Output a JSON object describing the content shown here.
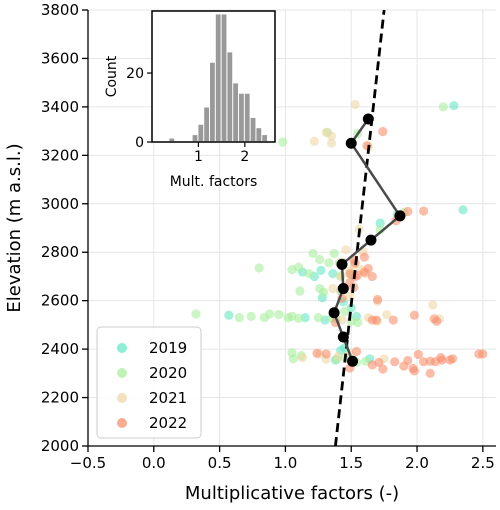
{
  "chart_data": [
    {
      "type": "scatter",
      "xlabel": "Multiplicative factors (-)",
      "ylabel": "Elevation (m a.s.l.)",
      "xlim": [
        -0.5,
        2.6
      ],
      "ylim": [
        2000,
        3800
      ],
      "xticks": [
        "−0.5",
        "0.0",
        "0.5",
        "1.0",
        "1.5",
        "2.0",
        "2.5"
      ],
      "yticks": [
        "2000",
        "2200",
        "2400",
        "2600",
        "2800",
        "3000",
        "3200",
        "3400",
        "3600",
        "3800"
      ],
      "grid": true,
      "legend_position": "lower-left",
      "series": [
        {
          "name": "2019",
          "color": "#66e8c6",
          "points": [
            [
              2.28,
              3405
            ],
            [
              2.35,
              2975
            ],
            [
              1.85,
              2955
            ],
            [
              1.72,
              2920
            ],
            [
              1.27,
              2725
            ],
            [
              1.13,
              2718
            ],
            [
              1.36,
              2712
            ],
            [
              1.22,
              2700
            ],
            [
              1.42,
              2640
            ],
            [
              1.28,
              2612
            ],
            [
              1.44,
              2595
            ],
            [
              1.5,
              2570
            ],
            [
              0.57,
              2540
            ],
            [
              1.54,
              2535
            ],
            [
              1.15,
              2530
            ],
            [
              1.3,
              2520
            ],
            [
              1.45,
              2405
            ],
            [
              1.42,
              2395
            ],
            [
              1.64,
              2360
            ],
            [
              1.38,
              2355
            ]
          ]
        },
        {
          "name": "2020",
          "color": "#a8ef9c",
          "points": [
            [
              2.2,
              3400
            ],
            [
              1.32,
              3295
            ],
            [
              1.55,
              3290
            ],
            [
              0.98,
              3255
            ],
            [
              1.9,
              2965
            ],
            [
              1.72,
              2892
            ],
            [
              1.21,
              2795
            ],
            [
              1.37,
              2795
            ],
            [
              1.26,
              2770
            ],
            [
              1.33,
              2756
            ],
            [
              1.41,
              2755
            ],
            [
              0.8,
              2735
            ],
            [
              1.1,
              2738
            ],
            [
              1.05,
              2728
            ],
            [
              1.18,
              2712
            ],
            [
              1.5,
              2707
            ],
            [
              1.42,
              2702
            ],
            [
              1.26,
              2650
            ],
            [
              1.11,
              2640
            ],
            [
              1.29,
              2635
            ],
            [
              1.45,
              2555
            ],
            [
              0.32,
              2545
            ],
            [
              0.88,
              2545
            ],
            [
              0.95,
              2543
            ],
            [
              0.84,
              2530
            ],
            [
              0.74,
              2535
            ],
            [
              1.02,
              2530
            ],
            [
              1.1,
              2527
            ],
            [
              1.05,
              2535
            ],
            [
              1.25,
              2530
            ],
            [
              1.35,
              2528
            ],
            [
              1.39,
              2525
            ],
            [
              0.65,
              2530
            ],
            [
              1.5,
              2515
            ],
            [
              1.55,
              2510
            ],
            [
              1.05,
              2385
            ],
            [
              1.12,
              2373
            ],
            [
              1.06,
              2360
            ],
            [
              1.45,
              2367
            ],
            [
              1.39,
              2358
            ],
            [
              1.61,
              2350
            ],
            [
              1.54,
              2345
            ]
          ]
        },
        {
          "name": "2021",
          "color": "#eed7a7",
          "points": [
            [
              1.53,
              3410
            ],
            [
              1.31,
              3295
            ],
            [
              1.35,
              3280
            ],
            [
              1.22,
              3258
            ],
            [
              1.35,
              3250
            ],
            [
              1.63,
              3235
            ],
            [
              1.88,
              2945
            ],
            [
              1.56,
              2895
            ],
            [
              1.46,
              2810
            ],
            [
              1.59,
              2803
            ],
            [
              1.43,
              2760
            ],
            [
              1.52,
              2745
            ],
            [
              1.58,
              2728
            ],
            [
              1.49,
              2722
            ],
            [
              1.61,
              2712
            ],
            [
              1.42,
              2700
            ],
            [
              1.36,
              2650
            ],
            [
              1.42,
              2640
            ],
            [
              1.49,
              2620
            ],
            [
              1.7,
              2597
            ],
            [
              2.12,
              2582
            ],
            [
              1.77,
              2542
            ],
            [
              1.63,
              2530
            ],
            [
              2.17,
              2525
            ],
            [
              1.43,
              2520
            ],
            [
              1.7,
              2515
            ],
            [
              1.75,
              2360
            ],
            [
              1.4,
              2370
            ],
            [
              1.13,
              2365
            ],
            [
              1.31,
              2358
            ],
            [
              1.26,
              2380
            ],
            [
              1.49,
              2380
            ]
          ]
        },
        {
          "name": "2022",
          "color": "#f8906e",
          "points": [
            [
              1.74,
              3298
            ],
            [
              1.62,
              3240
            ],
            [
              1.93,
              2968
            ],
            [
              1.88,
              2955
            ],
            [
              2.05,
              2970
            ],
            [
              1.84,
              2930
            ],
            [
              1.6,
              2780
            ],
            [
              1.52,
              2770
            ],
            [
              1.53,
              2755
            ],
            [
              1.63,
              2733
            ],
            [
              1.6,
              2718
            ],
            [
              1.55,
              2706
            ],
            [
              1.49,
              2711
            ],
            [
              1.53,
              2699
            ],
            [
              1.66,
              2700
            ],
            [
              1.49,
              2675
            ],
            [
              1.52,
              2655
            ],
            [
              1.7,
              2605
            ],
            [
              1.43,
              2610
            ],
            [
              1.98,
              2540
            ],
            [
              2.13,
              2525
            ],
            [
              2.15,
              2515
            ],
            [
              1.82,
              2520
            ],
            [
              1.69,
              2520
            ],
            [
              1.38,
              2510
            ],
            [
              1.66,
              2520
            ],
            [
              1.31,
              2380
            ],
            [
              1.24,
              2383
            ],
            [
              1.54,
              2390
            ],
            [
              2.01,
              2378
            ],
            [
              2.18,
              2365
            ],
            [
              2.14,
              2348
            ],
            [
              2.05,
              2348
            ],
            [
              1.93,
              2353
            ],
            [
              1.83,
              2348
            ],
            [
              1.71,
              2345
            ],
            [
              1.9,
              2330
            ],
            [
              2.27,
              2360
            ],
            [
              2.1,
              2350
            ],
            [
              2.47,
              2380
            ],
            [
              2.5,
              2380
            ],
            [
              2.25,
              2355
            ],
            [
              1.74,
              2318
            ],
            [
              1.49,
              2322
            ],
            [
              1.98,
              2310
            ],
            [
              2.1,
              2300
            ],
            [
              1.97,
              2320
            ],
            [
              2.19,
              2355
            ],
            [
              1.66,
              2335
            ]
          ]
        }
      ],
      "mean_profile": {
        "color": "#4a4a4a",
        "x": [
          1.51,
          1.44,
          1.37,
          1.44,
          1.43,
          1.65,
          1.87,
          1.5,
          1.63
        ],
        "y": [
          2350,
          2450,
          2550,
          2650,
          2750,
          2850,
          2950,
          3250,
          3350
        ]
      },
      "regression_line": {
        "style": "dashed",
        "color": "#000000",
        "x": [
          1.38,
          1.75
        ],
        "y": [
          2000,
          3800
        ]
      }
    },
    {
      "type": "bar",
      "inset": true,
      "xlabel": "Mult. factors",
      "ylabel": "Count",
      "xticks": [
        "1",
        "2"
      ],
      "yticks": [
        "0",
        "20"
      ],
      "xlim": [
        0.0,
        2.65
      ],
      "ylim": [
        0,
        38
      ],
      "color": "#999999",
      "bin_width": 0.125,
      "bin_starts": [
        0.25,
        0.375,
        0.5,
        0.625,
        0.75,
        0.875,
        1.0,
        1.125,
        1.25,
        1.375,
        1.5,
        1.625,
        1.75,
        1.875,
        2.0,
        2.125,
        2.25,
        2.375
      ],
      "values": [
        0,
        1,
        0,
        0,
        0,
        2,
        5,
        10,
        23,
        37,
        37,
        26,
        17,
        14,
        14,
        7,
        4,
        2
      ]
    }
  ]
}
